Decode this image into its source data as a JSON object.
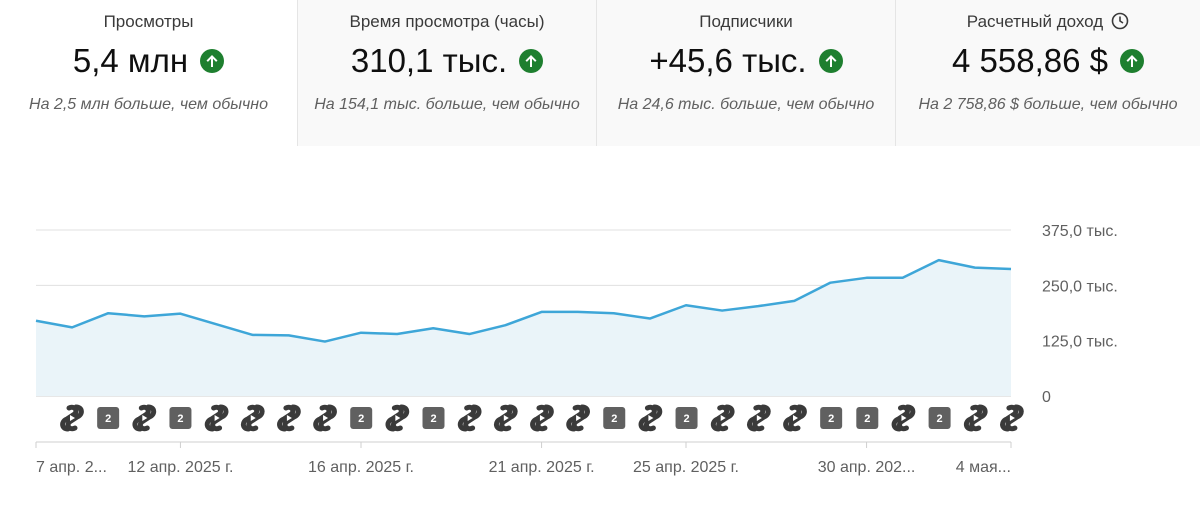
{
  "metrics": [
    {
      "label": "Просмотры",
      "value": "5,4 млн",
      "note": "На 2,5 млн больше, чем обычно",
      "trend_icon": "arrow-up-circle-icon"
    },
    {
      "label": "Время просмотра (часы)",
      "value": "310,1 тыс.",
      "note": "На 154,1 тыс. больше, чем обычно",
      "trend_icon": "arrow-up-circle-icon"
    },
    {
      "label": "Подписчики",
      "value": "+45,6 тыс.",
      "note": "На 24,6 тыс. больше, чем обычно",
      "trend_icon": "arrow-up-circle-icon"
    },
    {
      "label": "Расчетный доход",
      "value": "4 558,86 $",
      "note": "На 2 758,86 $ больше, чем обычно",
      "trend_icon": "arrow-up-circle-icon",
      "extra_icon": "clock-icon"
    }
  ],
  "colors": {
    "line": "#3ea6d8",
    "area": "#eaf4f9",
    "trend_up": "#1e7f2f",
    "badge": "#606060",
    "grid": "#e0e0e0"
  },
  "chart_data": {
    "type": "area",
    "title": "",
    "xlabel": "",
    "ylabel": "",
    "ylim": [
      0,
      375000
    ],
    "yticks": [
      {
        "value": 375000,
        "label": "375,0 тыс."
      },
      {
        "value": 250000,
        "label": "250,0 тыс."
      },
      {
        "value": 125000,
        "label": "125,0 тыс."
      },
      {
        "value": 0,
        "label": "0"
      }
    ],
    "grid": true,
    "series": [
      {
        "values": [
          170000,
          155000,
          187000,
          180000,
          186000,
          162000,
          138000,
          137000,
          123000,
          143000,
          140000,
          153000,
          140000,
          160000,
          190000,
          190000,
          187000,
          175000,
          205000,
          193000,
          203000,
          215000,
          256000,
          267000,
          267000,
          307000,
          290000,
          287000
        ]
      }
    ],
    "xtick_labels": [
      {
        "index": 0,
        "label": "7 апр. 2..."
      },
      {
        "index": 4,
        "label": "12 апр. 2025 г."
      },
      {
        "index": 9,
        "label": "16 апр. 2025 г."
      },
      {
        "index": 14,
        "label": "21 апр. 2025 г."
      },
      {
        "index": 18,
        "label": "25 апр. 2025 г."
      },
      {
        "index": 23,
        "label": "30 апр. 202..."
      },
      {
        "index": 27,
        "label": "4 мая..."
      }
    ],
    "markers": [
      "shorts-icon",
      "badge",
      "shorts-icon",
      "badge",
      "shorts-icon",
      "shorts-icon",
      "shorts-icon",
      "shorts-icon",
      "badge",
      "shorts-icon",
      "badge",
      "shorts-icon",
      "shorts-icon",
      "shorts-icon",
      "shorts-icon",
      "badge",
      "shorts-icon",
      "badge",
      "shorts-icon",
      "shorts-icon",
      "shorts-icon",
      "badge",
      "badge",
      "shorts-icon",
      "badge",
      "shorts-icon",
      "shorts-icon"
    ],
    "badge_label": "2"
  }
}
